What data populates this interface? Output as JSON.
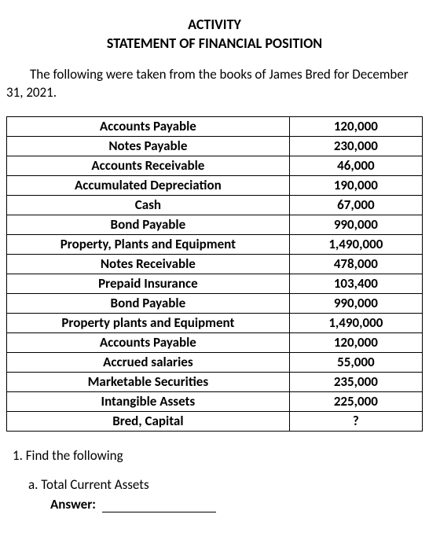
{
  "header": {
    "line1": "ACTIVITY",
    "line2": "STATEMENT OF FINANCIAL POSITION"
  },
  "intro": "The following were taken from the books of James Bred for December 31, 2021.",
  "table": {
    "rows": [
      {
        "label": "Accounts Payable",
        "value": "120,000"
      },
      {
        "label": "Notes Payable",
        "value": "230,000"
      },
      {
        "label": "Accounts Receivable",
        "value": "46,000"
      },
      {
        "label": "Accumulated Depreciation",
        "value": "190,000"
      },
      {
        "label": "Cash",
        "value": "67,000"
      },
      {
        "label": "Bond Payable",
        "value": "990,000"
      },
      {
        "label": "Property, Plants and Equipment",
        "value": "1,490,000"
      },
      {
        "label": "Notes Receivable",
        "value": "478,000"
      },
      {
        "label": "Prepaid Insurance",
        "value": "103,400"
      },
      {
        "label": "Bond Payable",
        "value": "990,000"
      },
      {
        "label": "Property plants and Equipment",
        "value": "1,490,000"
      },
      {
        "label": "Accounts Payable",
        "value": "120,000"
      },
      {
        "label": "Accrued salaries",
        "value": "55,000"
      },
      {
        "label": "Marketable Securities",
        "value": "235,000"
      },
      {
        "label": "Intangible Assets",
        "value": "225,000"
      },
      {
        "label": "Bred, Capital",
        "value": "?"
      }
    ],
    "font_weight": "bold",
    "border_color": "#000000",
    "label_align": "center",
    "value_align": "center"
  },
  "questions": {
    "heading": "1. Find the following",
    "sub": "a. Total Current Assets",
    "answer_label": "Answer:"
  },
  "colors": {
    "text": "#000000",
    "background": "#ffffff"
  },
  "typography": {
    "title_fontsize": 18,
    "body_fontsize": 17,
    "font_family": "Calibri"
  }
}
